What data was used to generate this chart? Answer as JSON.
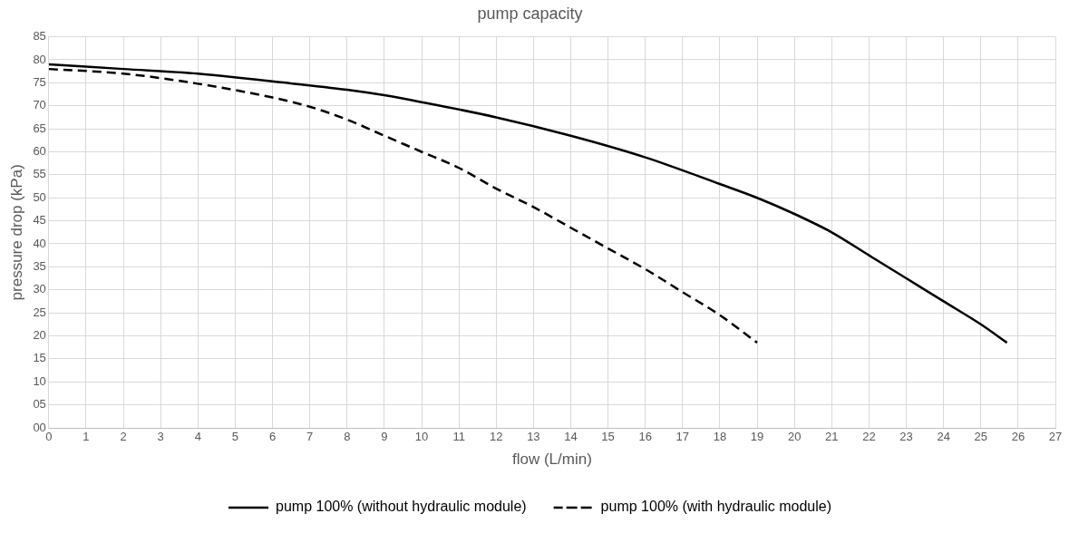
{
  "chart_data": {
    "type": "line",
    "title": "pump capacity",
    "xlabel": "flow (L/min)",
    "ylabel": "pressure drop (kPa)",
    "series": [
      {
        "name": "pump 100% (without hydraulic module)",
        "color": "#000000",
        "line_style": "solid",
        "x": [
          0,
          2,
          4,
          6,
          8,
          9,
          10,
          12,
          14,
          16,
          18,
          19,
          20,
          21,
          22,
          23,
          24,
          25,
          25.7
        ],
        "values": [
          79,
          78,
          77,
          75.3,
          73.5,
          72.3,
          70.8,
          67.5,
          63.5,
          58.8,
          53,
          50,
          46.5,
          42.5,
          37.5,
          32.5,
          27.5,
          22.5,
          18.5
        ]
      },
      {
        "name": "pump 100% (with hydraulic module)",
        "color": "#000000",
        "line_style": "dashed",
        "x": [
          0,
          2,
          4,
          6,
          7,
          8,
          9,
          10,
          11,
          12,
          13,
          14,
          15,
          16,
          17,
          18,
          19
        ],
        "values": [
          78,
          77,
          74.8,
          71.8,
          69.8,
          67,
          63.5,
          60,
          56.5,
          52,
          48,
          43.5,
          39,
          34.5,
          29.5,
          24.5,
          18.5
        ]
      }
    ],
    "xlim": [
      0,
      27
    ],
    "xticks": [
      0,
      1,
      2,
      3,
      4,
      5,
      6,
      7,
      8,
      9,
      10,
      11,
      12,
      13,
      14,
      15,
      16,
      17,
      18,
      19,
      20,
      21,
      22,
      23,
      24,
      25,
      26,
      27
    ],
    "ylim": [
      0,
      85
    ],
    "yticks": [
      {
        "value": 0,
        "label": "00"
      },
      {
        "value": 5,
        "label": "05"
      },
      10,
      15,
      20,
      25,
      30,
      35,
      40,
      45,
      50,
      55,
      60,
      65,
      70,
      75,
      80,
      85
    ],
    "grid": true,
    "legend": "bottom",
    "marker": "none"
  }
}
